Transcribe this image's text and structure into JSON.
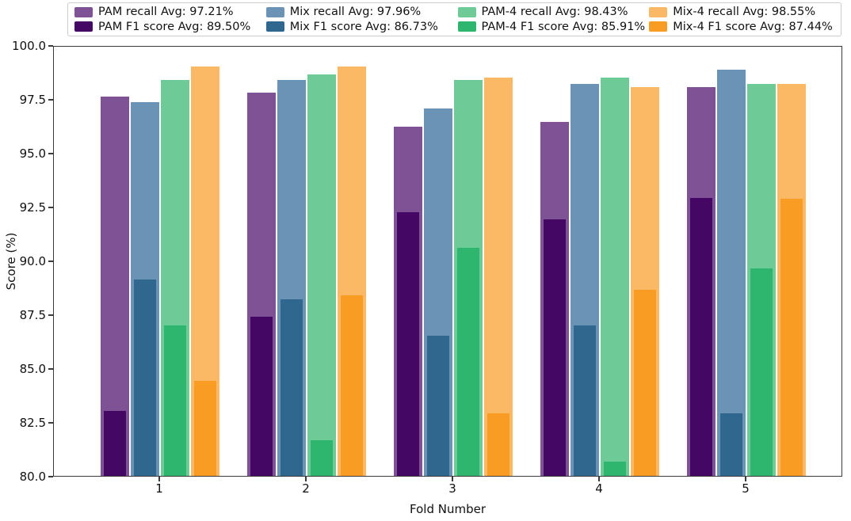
{
  "figure": {
    "xlabel": "Fold Number",
    "ylabel": "Score (%)"
  },
  "colors": {
    "spine": "#3b3b3b",
    "text": "#111111",
    "legend_border": "#cccccc",
    "background": "#ffffff"
  },
  "chart_data": {
    "type": "bar",
    "title": "",
    "xlabel": "Fold Number",
    "ylabel": "Score (%)",
    "ylim": [
      80,
      100
    ],
    "ytick_values": [
      100,
      97.5,
      95,
      92.5,
      90,
      87.5,
      85,
      82.5,
      80
    ],
    "ytick_labels": [
      "100.0",
      "97.5",
      "95.0",
      "92.5",
      "90.0",
      "87.5",
      "85.0",
      "82.5",
      "80.0"
    ],
    "categories": [
      "1",
      "2",
      "3",
      "4",
      "5"
    ],
    "grid": false,
    "legend_position": "top",
    "legend_columns": 4,
    "series": [
      {
        "name": "PAM recall",
        "legend_label": "PAM recall Avg: 97.21%",
        "avg": 97.21,
        "color": "#7e5295",
        "role": "recall",
        "values": [
          97.6,
          97.8,
          96.2,
          96.45,
          98.05
        ]
      },
      {
        "name": "PAM F1 score",
        "legend_label": "PAM F1 score Avg: 89.50%",
        "avg": 89.5,
        "color": "#440764",
        "role": "f1",
        "values": [
          83.0,
          87.4,
          92.25,
          91.9,
          92.9
        ]
      },
      {
        "name": "Mix recall",
        "legend_label": "Mix recall Avg: 97.96%",
        "avg": 97.96,
        "color": "#6b93b5",
        "role": "recall",
        "values": [
          97.35,
          98.4,
          97.05,
          98.2,
          98.85
        ]
      },
      {
        "name": "Mix F1 score",
        "legend_label": "Mix F1 score Avg: 86.73%",
        "avg": 86.73,
        "color": "#30678f",
        "role": "f1",
        "values": [
          89.1,
          88.2,
          86.5,
          87.0,
          82.9
        ]
      },
      {
        "name": "PAM-4 recall",
        "legend_label": "PAM-4 recall Avg: 98.43%",
        "avg": 98.43,
        "color": "#6ecb97",
        "role": "recall",
        "values": [
          98.4,
          98.65,
          98.4,
          98.5,
          98.2
        ]
      },
      {
        "name": "PAM-4 F1 score",
        "legend_label": "PAM-4 F1 score Avg: 85.91%",
        "avg": 85.91,
        "color": "#2eb56e",
        "role": "f1",
        "values": [
          87.0,
          81.65,
          90.6,
          80.65,
          89.65
        ]
      },
      {
        "name": "Mix-4 recall",
        "legend_label": "Mix-4 recall Avg: 98.55%",
        "avg": 98.55,
        "color": "#fbb966",
        "role": "recall",
        "values": [
          99.0,
          99.0,
          98.5,
          98.05,
          98.2
        ]
      },
      {
        "name": "Mix-4 F1 score",
        "legend_label": "Mix-4 F1 score Avg: 87.44%",
        "avg": 87.44,
        "color": "#f89c24",
        "role": "f1",
        "values": [
          84.4,
          88.4,
          82.9,
          88.65,
          92.85
        ]
      }
    ]
  }
}
